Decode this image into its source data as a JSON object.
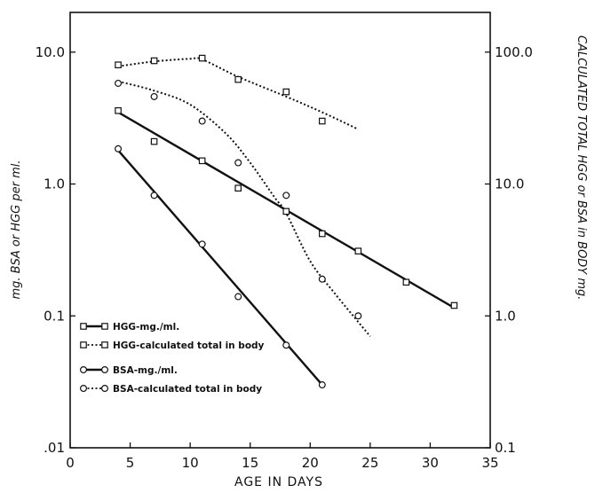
{
  "chart_data": {
    "type": "line",
    "xlabel": "AGE IN DAYS",
    "ylabel": "mg. BSA or HGG per ml.",
    "y2label": "CALCULATED TOTAL HGG or BSA in BODY mg.",
    "x_scale": "linear",
    "y_scale": "log",
    "y2_scale": "log",
    "xlim": [
      0,
      35
    ],
    "ylim": [
      0.01,
      20
    ],
    "y2lim": [
      0.1,
      200
    ],
    "x_ticks": [
      0,
      5,
      10,
      15,
      20,
      25,
      30,
      35
    ],
    "y_ticks": [
      0.01,
      0.1,
      1.0,
      10.0
    ],
    "y_tick_labels": [
      ".01",
      "0.1",
      "1.0",
      "10.0"
    ],
    "y2_ticks": [
      0.1,
      1.0,
      10.0,
      100.0
    ],
    "y2_tick_labels": [
      "0.1",
      "1.0",
      "10.0",
      "100.0"
    ],
    "x_tick_labels": [
      "0",
      "5",
      "10",
      "15",
      "20",
      "25",
      "30",
      "35"
    ],
    "grid": false,
    "legend_position": "bottom-left",
    "series": [
      {
        "name": "HGG-mg./ml.",
        "axis": "left",
        "marker": "square",
        "line": "solid",
        "points": [
          [
            4,
            3.6
          ],
          [
            7,
            2.1
          ],
          [
            11,
            1.5
          ],
          [
            14,
            0.93
          ],
          [
            18,
            0.62
          ],
          [
            21,
            0.42
          ],
          [
            24,
            0.31
          ],
          [
            28,
            0.18
          ],
          [
            32,
            0.12
          ]
        ],
        "fit": [
          [
            4,
            3.5
          ],
          [
            32,
            0.115
          ]
        ]
      },
      {
        "name": "HGG-calculated total in body",
        "axis": "right",
        "marker": "square",
        "line": "dotted",
        "points": [
          [
            4,
            80
          ],
          [
            7,
            86
          ],
          [
            11,
            90
          ],
          [
            14,
            62
          ],
          [
            18,
            50
          ],
          [
            21,
            30
          ]
        ],
        "fit": [
          [
            4,
            78
          ],
          [
            7,
            85
          ],
          [
            10,
            89
          ],
          [
            11,
            88
          ],
          [
            14,
            65
          ],
          [
            18,
            46
          ],
          [
            21,
            35
          ],
          [
            24,
            26
          ]
        ]
      },
      {
        "name": "BSA-mg./ml.",
        "axis": "left",
        "marker": "circle",
        "line": "solid",
        "points": [
          [
            4,
            1.85
          ],
          [
            7,
            0.82
          ],
          [
            11,
            0.35
          ],
          [
            14,
            0.14
          ],
          [
            18,
            0.06
          ],
          [
            21,
            0.03
          ]
        ],
        "fit": [
          [
            4,
            1.8
          ],
          [
            21,
            0.03
          ]
        ]
      },
      {
        "name": "BSA-calculated total in body",
        "axis": "right",
        "marker": "circle",
        "line": "dotted",
        "points": [
          [
            4,
            58
          ],
          [
            7,
            46
          ],
          [
            11,
            30
          ],
          [
            14,
            14.5
          ],
          [
            18,
            8.2
          ],
          [
            21,
            1.9
          ],
          [
            24,
            1.0
          ]
        ],
        "fit": [
          [
            4,
            60
          ],
          [
            7,
            51
          ],
          [
            10,
            40
          ],
          [
            13,
            24
          ],
          [
            15,
            14.5
          ],
          [
            17,
            8
          ],
          [
            18,
            6
          ],
          [
            20,
            2.6
          ],
          [
            22,
            1.5
          ],
          [
            24,
            0.9
          ],
          [
            25,
            0.7
          ]
        ]
      }
    ]
  }
}
